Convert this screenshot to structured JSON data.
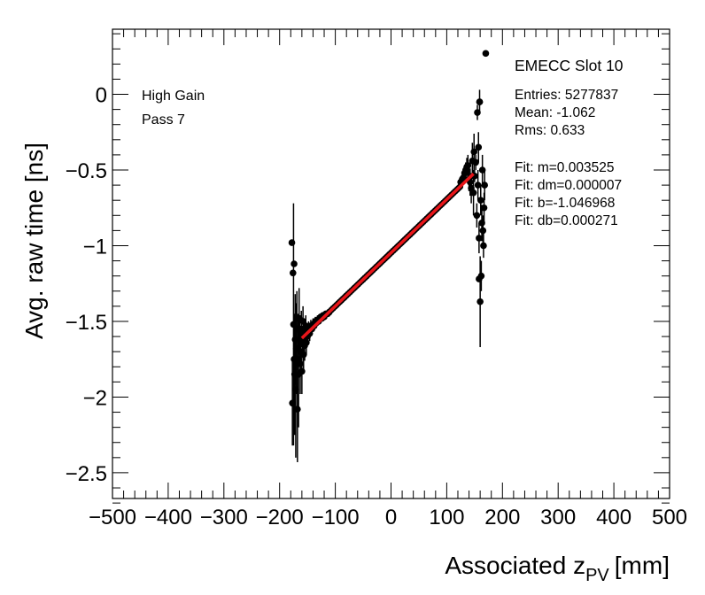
{
  "chart_data": {
    "type": "scatter",
    "xlabel_main": "Associated z",
    "xlabel_sub": "PV",
    "xlabel_unit": "[mm]",
    "ylabel": "Avg. raw time [ns]",
    "xlim": [
      -500,
      500
    ],
    "ylim": [
      -2.67,
      0.43
    ],
    "x_ticks": [
      -500,
      -400,
      -300,
      -200,
      -100,
      0,
      100,
      200,
      300,
      400,
      500
    ],
    "x_tick_labels": [
      "−500",
      "−400",
      "−300",
      "−200",
      "−100",
      "0",
      "100",
      "200",
      "300",
      "400",
      "500"
    ],
    "y_ticks": [
      0,
      -0.5,
      -1,
      -1.5,
      -2,
      -2.5
    ],
    "y_tick_labels": [
      "0",
      "−0.5",
      "−1",
      "−1.5",
      "−2",
      "−2.5"
    ],
    "annotations": [
      "High Gain",
      "Pass 7"
    ],
    "stats": {
      "title": "EMECC Slot 10",
      "entries": "Entries: 5277837",
      "mean": "Mean: -1.062",
      "rms": "Rms: 0.633",
      "fit_m": "Fit: m=0.003525",
      "fit_dm": "Fit: dm=0.000007",
      "fit_b": "Fit: b=-1.046968",
      "fit_db": "Fit: db=0.000271"
    },
    "fit": {
      "slope": 0.003525,
      "intercept": -1.046968,
      "x_range": [
        -160,
        148
      ],
      "color": "#e8161a"
    },
    "marker_color": "#000000",
    "series": [
      {
        "name": "avg raw time",
        "points": [
          [
            -178,
            -0.98,
            0
          ],
          [
            -176,
            -1.18,
            0
          ],
          [
            -174,
            -1.12,
            0
          ],
          [
            -177,
            -2.04,
            0.28
          ],
          [
            -175,
            -1.52,
            0.8
          ],
          [
            -174,
            -1.75,
            0.3
          ],
          [
            -173,
            -1.85,
            0.4
          ],
          [
            -172,
            -1.62,
            0.3
          ],
          [
            -171,
            -1.95,
            0.45
          ],
          [
            -170,
            -1.68,
            0.3
          ],
          [
            -169,
            -1.55,
            0.25
          ],
          [
            -168,
            -2.08,
            0.35
          ],
          [
            -167,
            -1.75,
            0.3
          ],
          [
            -166,
            -1.85,
            0.35
          ],
          [
            -165,
            -1.48,
            0.2
          ],
          [
            -164,
            -1.62,
            0.15
          ],
          [
            -163,
            -1.78,
            0.2
          ],
          [
            -162,
            -1.7,
            0.15
          ],
          [
            -161,
            -1.55,
            0.12
          ],
          [
            -160,
            -1.83,
            0.15
          ],
          [
            -159,
            -1.63,
            0.1
          ],
          [
            -158,
            -1.5,
            0.1
          ],
          [
            -157,
            -1.72,
            0.12
          ],
          [
            -156,
            -1.6,
            0.08
          ],
          [
            -155,
            -1.66,
            0.1
          ],
          [
            -154,
            -1.58,
            0.08
          ],
          [
            -153,
            -1.53,
            0.07
          ],
          [
            -152,
            -1.64,
            0.08
          ],
          [
            -151,
            -1.57,
            0.06
          ],
          [
            -150,
            -1.6,
            0.05
          ],
          [
            -148,
            -1.55,
            0.05
          ],
          [
            -146,
            -1.58,
            0.05
          ],
          [
            -144,
            -1.53,
            0.04
          ],
          [
            -142,
            -1.55,
            0.04
          ],
          [
            -140,
            -1.52,
            0.04
          ],
          [
            -138,
            -1.53,
            0.03
          ],
          [
            -136,
            -1.5,
            0.03
          ],
          [
            -134,
            -1.51,
            0.03
          ],
          [
            -132,
            -1.49,
            0.03
          ],
          [
            -130,
            -1.5,
            0.02
          ],
          [
            -128,
            -1.48,
            0.02
          ],
          [
            -126,
            -1.47,
            0.02
          ],
          [
            -124,
            -1.48,
            0.02
          ],
          [
            -122,
            -1.46,
            0.02
          ],
          [
            -120,
            -1.47,
            0.02
          ],
          [
            -117,
            -1.45,
            0.01
          ],
          [
            -114,
            -1.45,
            0.01
          ],
          [
            -111,
            -1.44,
            0.01
          ],
          [
            150,
            -0.54,
            0.04
          ],
          [
            152,
            -0.45,
            0.05
          ],
          [
            154,
            -0.8,
            0.08
          ],
          [
            155,
            -0.12,
            0.05
          ],
          [
            156,
            -0.6,
            0.1
          ],
          [
            157,
            -0.35,
            0.1
          ],
          [
            158,
            -0.95,
            0.1
          ],
          [
            159,
            -0.05,
            0.08
          ],
          [
            160,
            -1.37,
            0.3
          ],
          [
            161,
            -0.7,
            0.1
          ],
          [
            162,
            -1.2,
            0.1
          ],
          [
            163,
            -0.85,
            0.12
          ],
          [
            164,
            -0.5,
            0.1
          ],
          [
            165,
            -0.9,
            0.1
          ],
          [
            166,
            -1.0,
            0.08
          ],
          [
            167,
            -0.75,
            0.1
          ],
          [
            168,
            -0.6,
            0.1
          ],
          [
            170,
            0.27,
            0
          ],
          [
            158,
            -1.22,
            0
          ],
          [
            159,
            -0.05,
            0
          ],
          [
            125,
            -0.58,
            0.02
          ],
          [
            128,
            -0.56,
            0.02
          ],
          [
            130,
            -0.55,
            0.03
          ],
          [
            132,
            -0.52,
            0.04
          ],
          [
            134,
            -0.5,
            0.05
          ],
          [
            136,
            -0.48,
            0.06
          ],
          [
            138,
            -0.47,
            0.07
          ],
          [
            140,
            -0.56,
            0.08
          ],
          [
            142,
            -0.58,
            0.09
          ],
          [
            144,
            -0.62,
            0.1
          ],
          [
            146,
            -0.44,
            0.12
          ],
          [
            148,
            -0.65,
            0.15
          ],
          [
            149,
            -0.38,
            0.12
          ]
        ]
      }
    ]
  }
}
